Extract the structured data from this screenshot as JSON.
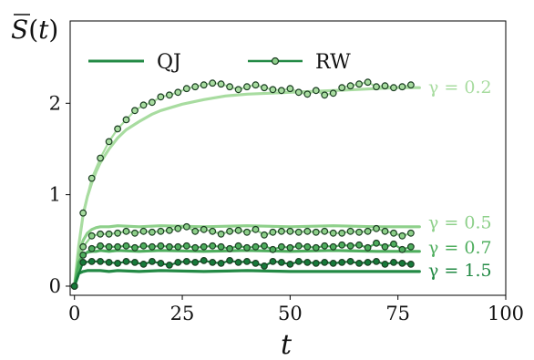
{
  "chart_data": {
    "type": "line",
    "ylabel": "S(t)",
    "xlabel": "t",
    "xlim": [
      -1,
      100
    ],
    "ylim": [
      -0.1,
      2.9
    ],
    "xticks": [
      0,
      25,
      50,
      75,
      100
    ],
    "yticks": [
      0,
      1,
      2
    ],
    "legend": {
      "placement": "top-left",
      "entries": [
        {
          "label": "QJ",
          "style": "line"
        },
        {
          "label": "RW",
          "style": "line-with-circle-markers"
        }
      ]
    },
    "series": [
      {
        "kind": "QJ",
        "gamma_label": "γ = 0.2",
        "color": "#a8dca0",
        "x": [
          0,
          1,
          2,
          3,
          4,
          5,
          6,
          8,
          10,
          12,
          15,
          18,
          20,
          25,
          30,
          35,
          40,
          45,
          50,
          55,
          60,
          65,
          70,
          75,
          80
        ],
        "y": [
          0,
          0.45,
          0.78,
          0.98,
          1.13,
          1.25,
          1.35,
          1.5,
          1.62,
          1.71,
          1.8,
          1.88,
          1.92,
          1.99,
          2.04,
          2.08,
          2.1,
          2.11,
          2.12,
          2.13,
          2.14,
          2.15,
          2.16,
          2.17,
          2.17
        ]
      },
      {
        "kind": "RW",
        "gamma_label": "γ = 0.2",
        "color": "#a8dca0",
        "x": [
          0,
          2,
          4,
          6,
          8,
          10,
          12,
          14,
          16,
          18,
          20,
          22,
          24,
          26,
          28,
          30,
          32,
          34,
          36,
          38,
          40,
          42,
          44,
          46,
          48,
          50,
          52,
          54,
          56,
          58,
          60,
          62,
          64,
          66,
          68,
          70,
          72,
          74,
          76,
          78
        ],
        "y": [
          0,
          0.8,
          1.18,
          1.4,
          1.58,
          1.72,
          1.82,
          1.92,
          1.98,
          2.01,
          2.07,
          2.09,
          2.12,
          2.16,
          2.18,
          2.2,
          2.22,
          2.21,
          2.18,
          2.15,
          2.18,
          2.2,
          2.17,
          2.15,
          2.14,
          2.16,
          2.12,
          2.1,
          2.14,
          2.09,
          2.11,
          2.17,
          2.19,
          2.21,
          2.23,
          2.18,
          2.19,
          2.17,
          2.18,
          2.2
        ]
      },
      {
        "kind": "QJ",
        "gamma_label": "γ = 0.5",
        "color": "#8ed08a",
        "x": [
          0,
          1,
          2,
          3,
          4,
          5,
          6,
          8,
          10,
          15,
          20,
          30,
          40,
          50,
          60,
          70,
          80
        ],
        "y": [
          0,
          0.35,
          0.5,
          0.58,
          0.62,
          0.64,
          0.65,
          0.65,
          0.66,
          0.65,
          0.66,
          0.65,
          0.66,
          0.65,
          0.66,
          0.65,
          0.65
        ]
      },
      {
        "kind": "RW",
        "gamma_label": "γ = 0.5",
        "color": "#8ed08a",
        "x": [
          0,
          2,
          4,
          6,
          8,
          10,
          12,
          14,
          16,
          18,
          20,
          22,
          24,
          26,
          28,
          30,
          32,
          34,
          36,
          38,
          40,
          42,
          44,
          46,
          48,
          50,
          52,
          54,
          56,
          58,
          60,
          62,
          64,
          66,
          68,
          70,
          72,
          74,
          76,
          78
        ],
        "y": [
          0,
          0.43,
          0.55,
          0.57,
          0.57,
          0.58,
          0.6,
          0.58,
          0.6,
          0.59,
          0.6,
          0.61,
          0.63,
          0.65,
          0.6,
          0.62,
          0.6,
          0.57,
          0.6,
          0.61,
          0.59,
          0.62,
          0.56,
          0.59,
          0.6,
          0.6,
          0.59,
          0.6,
          0.59,
          0.6,
          0.58,
          0.58,
          0.6,
          0.59,
          0.6,
          0.63,
          0.6,
          0.58,
          0.55,
          0.58
        ]
      },
      {
        "kind": "QJ",
        "gamma_label": "γ = 0.7",
        "color": "#4fae5e",
        "x": [
          0,
          1,
          2,
          3,
          4,
          5,
          6,
          8,
          10,
          15,
          20,
          30,
          40,
          50,
          60,
          70,
          80
        ],
        "y": [
          0,
          0.26,
          0.34,
          0.37,
          0.38,
          0.38,
          0.39,
          0.38,
          0.39,
          0.38,
          0.39,
          0.38,
          0.39,
          0.38,
          0.39,
          0.38,
          0.38
        ]
      },
      {
        "kind": "RW",
        "gamma_label": "γ = 0.7",
        "color": "#4fae5e",
        "x": [
          0,
          2,
          4,
          6,
          8,
          10,
          12,
          14,
          16,
          18,
          20,
          22,
          24,
          26,
          28,
          30,
          32,
          34,
          36,
          38,
          40,
          42,
          44,
          46,
          48,
          50,
          52,
          54,
          56,
          58,
          60,
          62,
          64,
          66,
          68,
          70,
          72,
          74,
          76,
          78
        ],
        "y": [
          0,
          0.34,
          0.41,
          0.44,
          0.43,
          0.43,
          0.44,
          0.42,
          0.44,
          0.43,
          0.44,
          0.43,
          0.43,
          0.44,
          0.42,
          0.43,
          0.44,
          0.43,
          0.41,
          0.44,
          0.42,
          0.43,
          0.44,
          0.4,
          0.43,
          0.42,
          0.44,
          0.43,
          0.42,
          0.44,
          0.43,
          0.45,
          0.44,
          0.45,
          0.42,
          0.47,
          0.43,
          0.46,
          0.4,
          0.43
        ]
      },
      {
        "kind": "QJ",
        "gamma_label": "γ = 1.5",
        "color": "#238a45",
        "x": [
          0,
          1,
          2,
          3,
          4,
          5,
          6,
          8,
          10,
          15,
          20,
          30,
          40,
          50,
          60,
          70,
          80
        ],
        "y": [
          0,
          0.14,
          0.16,
          0.17,
          0.17,
          0.17,
          0.17,
          0.16,
          0.17,
          0.16,
          0.17,
          0.16,
          0.17,
          0.16,
          0.16,
          0.16,
          0.16
        ]
      },
      {
        "kind": "RW",
        "gamma_label": "γ = 1.5",
        "color": "#167a3a",
        "x": [
          0,
          2,
          4,
          6,
          8,
          10,
          12,
          14,
          16,
          18,
          20,
          22,
          24,
          26,
          28,
          30,
          32,
          34,
          36,
          38,
          40,
          42,
          44,
          46,
          48,
          50,
          52,
          54,
          56,
          58,
          60,
          62,
          64,
          66,
          68,
          70,
          72,
          74,
          76,
          78
        ],
        "y": [
          0,
          0.26,
          0.27,
          0.27,
          0.26,
          0.25,
          0.27,
          0.26,
          0.24,
          0.27,
          0.25,
          0.23,
          0.26,
          0.27,
          0.26,
          0.28,
          0.26,
          0.25,
          0.28,
          0.26,
          0.27,
          0.25,
          0.22,
          0.27,
          0.26,
          0.24,
          0.27,
          0.26,
          0.25,
          0.26,
          0.25,
          0.26,
          0.27,
          0.25,
          0.26,
          0.27,
          0.24,
          0.26,
          0.25,
          0.24
        ]
      }
    ],
    "gamma_labels": [
      {
        "text": "γ = 0.2",
        "y": 2.17,
        "color": "#a8dca0"
      },
      {
        "text": "γ = 0.5",
        "y": 0.69,
        "color": "#8ed08a"
      },
      {
        "text": "γ = 0.7",
        "y": 0.42,
        "color": "#4fae5e"
      },
      {
        "text": "γ = 1.5",
        "y": 0.17,
        "color": "#238a45"
      }
    ],
    "legend_color": "#238a45"
  }
}
